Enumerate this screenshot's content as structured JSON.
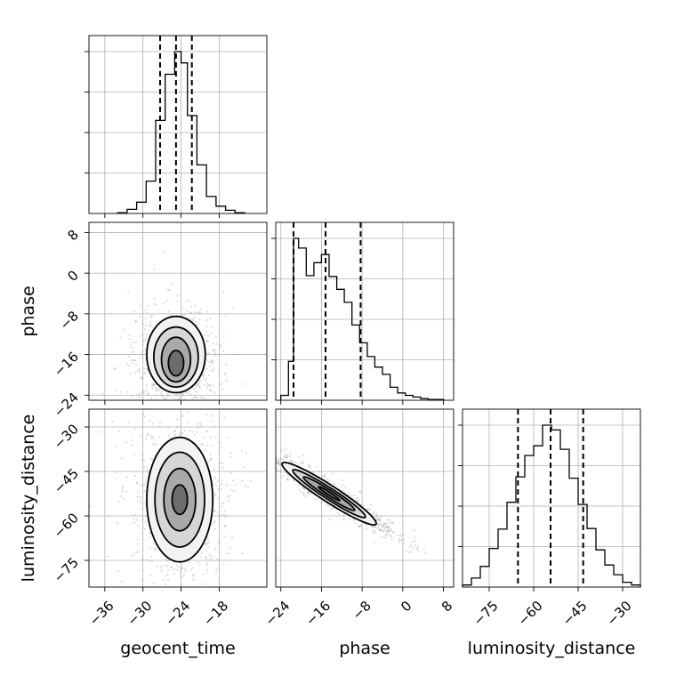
{
  "chart_data": {
    "type": "corner",
    "parameters": [
      "geocent_time",
      "phase",
      "luminosity_distance"
    ],
    "axis_labels": {
      "x": [
        "geocent_time",
        "phase",
        "luminosity_distance"
      ],
      "y": [
        "phase",
        "luminosity_distance"
      ]
    },
    "ticks": {
      "geocent_time": [
        -36,
        -30,
        -24,
        -18
      ],
      "phase": [
        -24,
        -16,
        -8,
        0,
        8
      ],
      "luminosity_distance": [
        -75,
        -60,
        -45,
        -30
      ]
    },
    "tick_labels": {
      "geocent_time": [
        "−36",
        "−30",
        "−24",
        "−18"
      ],
      "phase": [
        "−24",
        "−16",
        "−8",
        "0",
        "8"
      ],
      "luminosity_distance": [
        "−75",
        "−60",
        "−45",
        "−30"
      ]
    },
    "ranges": {
      "geocent_time": [
        -38.5,
        -10.5
      ],
      "phase": [
        -25,
        10
      ],
      "luminosity_distance": [
        -84,
        -24
      ]
    },
    "grid": true,
    "histograms": [
      {
        "parameter": "geocent_time",
        "bin_edges": [
          -34,
          -32.5,
          -31,
          -29.5,
          -28,
          -26.5,
          -25,
          -24,
          -23,
          -21.5,
          -20,
          -18.5,
          -17,
          -15.5,
          -14
        ],
        "counts": [
          1,
          5,
          14,
          40,
          115,
          172,
          200,
          186,
          121,
          60,
          21,
          9,
          4,
          1
        ],
        "quantiles": [
          -27.3,
          -24.8,
          -22.3
        ]
      },
      {
        "parameter": "phase",
        "bin_edges": [
          -24,
          -22.5,
          -21.5,
          -20.5,
          -19,
          -17.5,
          -16,
          -14.5,
          -13,
          -11.5,
          -10,
          -8.5,
          -7,
          -5.5,
          -4,
          -2.5,
          -1,
          0.5,
          2,
          3.5,
          5,
          6.5,
          8
        ],
        "counts": [
          6,
          48,
          200,
          188,
          154,
          170,
          180,
          153,
          137,
          121,
          93,
          71,
          54,
          41,
          32,
          16,
          9,
          6,
          4,
          2,
          1,
          1
        ],
        "quantiles": [
          -21.5,
          -15.2,
          -8.3
        ]
      },
      {
        "parameter": "luminosity_distance",
        "bin_edges": [
          -84,
          -81,
          -78,
          -75,
          -72,
          -69,
          -66,
          -63,
          -60,
          -57,
          -54,
          -51,
          -48,
          -45,
          -42,
          -39,
          -36,
          -33,
          -30,
          -27,
          -24
        ],
        "counts": [
          3,
          13,
          30,
          56,
          84,
          123,
          160,
          191,
          205,
          235,
          228,
          200,
          158,
          120,
          85,
          54,
          32,
          18,
          7,
          3
        ],
        "quantiles": [
          -65.3,
          -54.3,
          -43.3
        ]
      }
    ],
    "contours_2d": [
      {
        "x": "geocent_time",
        "y": "phase",
        "center": [
          -24.8,
          -17.5
        ],
        "levels": [
          {
            "rx": 4.6,
            "ry": 7.5,
            "dy": 1.5
          },
          {
            "rx": 3.5,
            "ry": 5.9,
            "dy": 1.0
          },
          {
            "rx": 2.3,
            "ry": 4.4,
            "dy": 0.5
          },
          {
            "rx": 1.2,
            "ry": 2.5,
            "dy": -0.2
          }
        ]
      },
      {
        "x": "geocent_time",
        "y": "luminosity_distance",
        "center": [
          -24.2,
          -54.5
        ],
        "levels": [
          {
            "rx": 5.2,
            "ry": 21.0
          },
          {
            "rx": 3.9,
            "ry": 16.0
          },
          {
            "rx": 2.5,
            "ry": 10.5
          },
          {
            "rx": 1.2,
            "ry": 5.0
          }
        ]
      },
      {
        "x": "phase",
        "y": "luminosity_distance",
        "center": [
          -14.5,
          -52.5
        ],
        "levels": [
          {
            "rx": 11.0,
            "ry": 2.8
          },
          {
            "rx": 8.5,
            "ry": 1.9
          },
          {
            "rx": 6.0,
            "ry": 1.2
          },
          {
            "rx": 2.5,
            "ry": 0.5
          }
        ]
      }
    ]
  }
}
